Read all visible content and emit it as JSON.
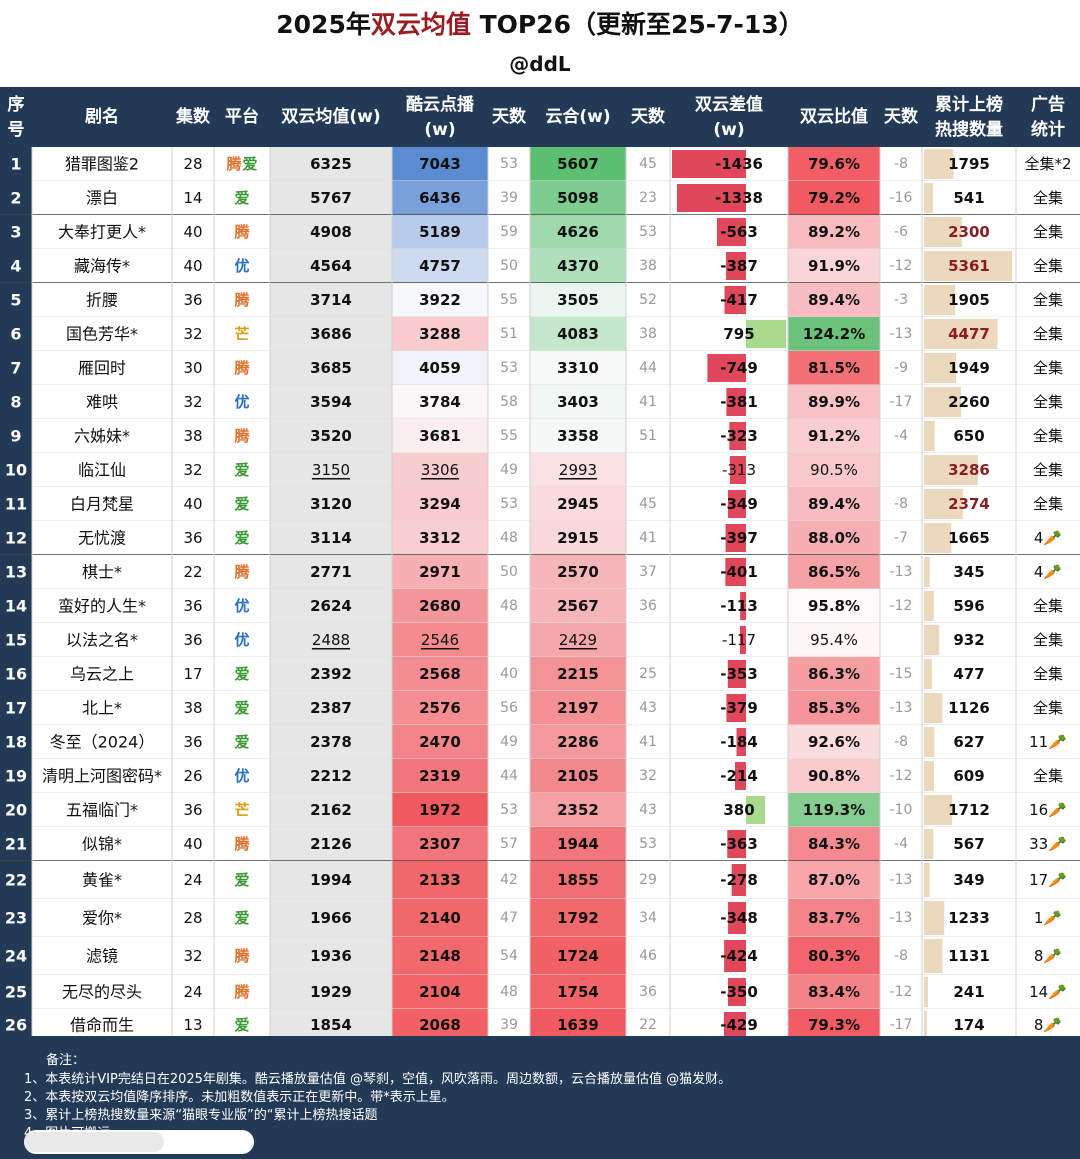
{
  "title": {
    "prefix": "2025年",
    "highlight": "双云均值",
    "suffix": " TOP26（更新至25-7-13）"
  },
  "subtitle": "@ddL",
  "colors": {
    "header_bg": "#223a56",
    "title_highlight": "#9a1d22",
    "tencent": "#e0712d",
    "iqiyi": "#3a9a33",
    "youku": "#2b6fc0",
    "mango": "#d5a017"
  },
  "chart_data": {
    "type": "table",
    "columns": [
      "序号",
      "剧名",
      "集数",
      "平台",
      "双云均值(w)",
      "酷云点播(w)",
      "天数",
      "云合(w)",
      "天数",
      "双云差值(w)",
      "双云比值",
      "天数",
      "累计上榜热搜数量",
      "广告统计"
    ],
    "rows": [
      {
        "rank": "1",
        "name": "猎罪图鉴2",
        "eps": "28",
        "platform": "腾爱",
        "avg": 6325,
        "kuyun": 7043,
        "kdays": "53",
        "yunhe": 5607,
        "ydays": "45",
        "diff": -1436,
        "ratio": 79.6,
        "rdays": "-8",
        "hot": 1795,
        "ad": "全集*2",
        "bold": true
      },
      {
        "rank": "2",
        "name": "漂白",
        "eps": "14",
        "platform": "爱",
        "avg": 5767,
        "kuyun": 6436,
        "kdays": "39",
        "yunhe": 5098,
        "ydays": "23",
        "diff": -1338,
        "ratio": 79.2,
        "rdays": "-16",
        "hot": 541,
        "ad": "全集",
        "bold": true
      },
      {
        "rank": "3",
        "name": "大奉打更人*",
        "eps": "40",
        "platform": "腾",
        "avg": 4908,
        "kuyun": 5189,
        "kdays": "59",
        "yunhe": 4626,
        "ydays": "53",
        "diff": -563,
        "ratio": 89.2,
        "rdays": "-6",
        "hot": 2300,
        "ad": "全集",
        "bold": true
      },
      {
        "rank": "4",
        "name": "藏海传*",
        "eps": "40",
        "platform": "优",
        "avg": 4564,
        "kuyun": 4757,
        "kdays": "50",
        "yunhe": 4370,
        "ydays": "38",
        "diff": -387,
        "ratio": 91.9,
        "rdays": "-12",
        "hot": 5361,
        "ad": "全集",
        "bold": true
      },
      {
        "rank": "5",
        "name": "折腰",
        "eps": "36",
        "platform": "腾",
        "avg": 3714,
        "kuyun": 3922,
        "kdays": "55",
        "yunhe": 3505,
        "ydays": "52",
        "diff": -417,
        "ratio": 89.4,
        "rdays": "-3",
        "hot": 1905,
        "ad": "全集",
        "bold": true
      },
      {
        "rank": "6",
        "name": "国色芳华*",
        "eps": "32",
        "platform": "芒",
        "avg": 3686,
        "kuyun": 3288,
        "kdays": "51",
        "yunhe": 4083,
        "ydays": "38",
        "diff": 795,
        "ratio": 124.2,
        "rdays": "-13",
        "hot": 4477,
        "ad": "全集",
        "bold": true
      },
      {
        "rank": "7",
        "name": "雁回时",
        "eps": "30",
        "platform": "腾",
        "avg": 3685,
        "kuyun": 4059,
        "kdays": "53",
        "yunhe": 3310,
        "ydays": "44",
        "diff": -749,
        "ratio": 81.5,
        "rdays": "-9",
        "hot": 1949,
        "ad": "全集",
        "bold": true
      },
      {
        "rank": "8",
        "name": "难哄",
        "eps": "32",
        "platform": "优",
        "avg": 3594,
        "kuyun": 3784,
        "kdays": "58",
        "yunhe": 3403,
        "ydays": "41",
        "diff": -381,
        "ratio": 89.9,
        "rdays": "-17",
        "hot": 2260,
        "ad": "全集",
        "bold": true
      },
      {
        "rank": "9",
        "name": "六姊妹*",
        "eps": "38",
        "platform": "腾",
        "avg": 3520,
        "kuyun": 3681,
        "kdays": "55",
        "yunhe": 3358,
        "ydays": "51",
        "diff": -323,
        "ratio": 91.2,
        "rdays": "-4",
        "hot": 650,
        "ad": "全集",
        "bold": true
      },
      {
        "rank": "10",
        "name": "临江仙",
        "eps": "32",
        "platform": "爱",
        "avg": 3150,
        "kuyun": 3306,
        "kdays": "49",
        "yunhe": 2993,
        "ydays": "",
        "diff": -313,
        "ratio": 90.5,
        "rdays": "",
        "hot": 3286,
        "ad": "全集",
        "bold": false
      },
      {
        "rank": "11",
        "name": "白月梵星",
        "eps": "40",
        "platform": "爱",
        "avg": 3120,
        "kuyun": 3294,
        "kdays": "53",
        "yunhe": 2945,
        "ydays": "45",
        "diff": -349,
        "ratio": 89.4,
        "rdays": "-8",
        "hot": 2374,
        "ad": "全集",
        "bold": true
      },
      {
        "rank": "12",
        "name": "无忧渡",
        "eps": "36",
        "platform": "爱",
        "avg": 3114,
        "kuyun": 3312,
        "kdays": "48",
        "yunhe": 2915,
        "ydays": "41",
        "diff": -397,
        "ratio": 88.0,
        "rdays": "-7",
        "hot": 1665,
        "ad": "4🥕",
        "bold": true
      },
      {
        "rank": "13",
        "name": "棋士*",
        "eps": "22",
        "platform": "腾",
        "avg": 2771,
        "kuyun": 2971,
        "kdays": "50",
        "yunhe": 2570,
        "ydays": "37",
        "diff": -401,
        "ratio": 86.5,
        "rdays": "-13",
        "hot": 345,
        "ad": "4🥕",
        "bold": true
      },
      {
        "rank": "14",
        "name": "蛮好的人生*",
        "eps": "36",
        "platform": "优",
        "avg": 2624,
        "kuyun": 2680,
        "kdays": "48",
        "yunhe": 2567,
        "ydays": "36",
        "diff": -113,
        "ratio": 95.8,
        "rdays": "-12",
        "hot": 596,
        "ad": "全集",
        "bold": true
      },
      {
        "rank": "15",
        "name": "以法之名*",
        "eps": "36",
        "platform": "优",
        "avg": 2488,
        "kuyun": 2546,
        "kdays": "",
        "yunhe": 2429,
        "ydays": "",
        "diff": -117,
        "ratio": 95.4,
        "rdays": "",
        "hot": 932,
        "ad": "全集",
        "bold": false
      },
      {
        "rank": "16",
        "name": "乌云之上",
        "eps": "17",
        "platform": "爱",
        "avg": 2392,
        "kuyun": 2568,
        "kdays": "40",
        "yunhe": 2215,
        "ydays": "25",
        "diff": -353,
        "ratio": 86.3,
        "rdays": "-15",
        "hot": 477,
        "ad": "全集",
        "bold": true
      },
      {
        "rank": "17",
        "name": "北上*",
        "eps": "38",
        "platform": "爱",
        "avg": 2387,
        "kuyun": 2576,
        "kdays": "56",
        "yunhe": 2197,
        "ydays": "43",
        "diff": -379,
        "ratio": 85.3,
        "rdays": "-13",
        "hot": 1126,
        "ad": "全集",
        "bold": true
      },
      {
        "rank": "18",
        "name": "冬至（2024）",
        "eps": "36",
        "platform": "爱",
        "avg": 2378,
        "kuyun": 2470,
        "kdays": "49",
        "yunhe": 2286,
        "ydays": "41",
        "diff": -184,
        "ratio": 92.6,
        "rdays": "-8",
        "hot": 627,
        "ad": "11🥕",
        "bold": true
      },
      {
        "rank": "19",
        "name": "清明上河图密码*",
        "eps": "26",
        "platform": "优",
        "avg": 2212,
        "kuyun": 2319,
        "kdays": "44",
        "yunhe": 2105,
        "ydays": "32",
        "diff": -214,
        "ratio": 90.8,
        "rdays": "-12",
        "hot": 609,
        "ad": "全集",
        "bold": true
      },
      {
        "rank": "20",
        "name": "五福临门*",
        "eps": "36",
        "platform": "芒",
        "avg": 2162,
        "kuyun": 1972,
        "kdays": "53",
        "yunhe": 2352,
        "ydays": "43",
        "diff": 380,
        "ratio": 119.3,
        "rdays": "-10",
        "hot": 1712,
        "ad": "16🥕",
        "bold": true
      },
      {
        "rank": "21",
        "name": "似锦*",
        "eps": "40",
        "platform": "腾",
        "avg": 2126,
        "kuyun": 2307,
        "kdays": "57",
        "yunhe": 1944,
        "ydays": "53",
        "diff": -363,
        "ratio": 84.3,
        "rdays": "-4",
        "hot": 567,
        "ad": "33🥕",
        "bold": true
      },
      {
        "rank": "22",
        "name": "黄雀*",
        "eps": "24",
        "platform": "爱",
        "avg": 1994,
        "kuyun": 2133,
        "kdays": "42",
        "yunhe": 1855,
        "ydays": "29",
        "diff": -278,
        "ratio": 87.0,
        "rdays": "-13",
        "hot": 349,
        "ad": "17🥕",
        "bold": true
      },
      {
        "rank": "23",
        "name": "爱你*",
        "eps": "28",
        "platform": "爱",
        "avg": 1966,
        "kuyun": 2140,
        "kdays": "47",
        "yunhe": 1792,
        "ydays": "34",
        "diff": -348,
        "ratio": 83.7,
        "rdays": "-13",
        "hot": 1233,
        "ad": "1🥕",
        "bold": true
      },
      {
        "rank": "24",
        "name": "滤镜",
        "eps": "32",
        "platform": "腾",
        "avg": 1936,
        "kuyun": 2148,
        "kdays": "54",
        "yunhe": 1724,
        "ydays": "46",
        "diff": -424,
        "ratio": 80.3,
        "rdays": "-8",
        "hot": 1131,
        "ad": "8🥕",
        "bold": true
      },
      {
        "rank": "25",
        "name": "无尽的尽头",
        "eps": "24",
        "platform": "腾",
        "avg": 1929,
        "kuyun": 2104,
        "kdays": "48",
        "yunhe": 1754,
        "ydays": "36",
        "diff": -350,
        "ratio": 83.4,
        "rdays": "-12",
        "hot": 241,
        "ad": "14🥕",
        "bold": true
      },
      {
        "rank": "26",
        "name": "借命而生",
        "eps": "13",
        "platform": "爱",
        "avg": 1854,
        "kuyun": 2068,
        "kdays": "39",
        "yunhe": 1639,
        "ydays": "22",
        "diff": -429,
        "ratio": 79.3,
        "rdays": "-17",
        "hot": 174,
        "ad": "8🥕",
        "bold": true
      }
    ]
  },
  "notes": [
    "备注：",
    "1、本表统计VIP完结日在2025年剧集。酷云播放量估值 @琴刹，空值，风吹落雨。周边数额，云合播放量估值 @猫发财。",
    "2、本表按双云均值降序排序。未加粗数值表示正在更新中。带*表示上星。",
    "3、累计上榜热搜数量来源“猫眼专业版”的“累计上榜热搜话题",
    "4、图片可搬运。"
  ]
}
